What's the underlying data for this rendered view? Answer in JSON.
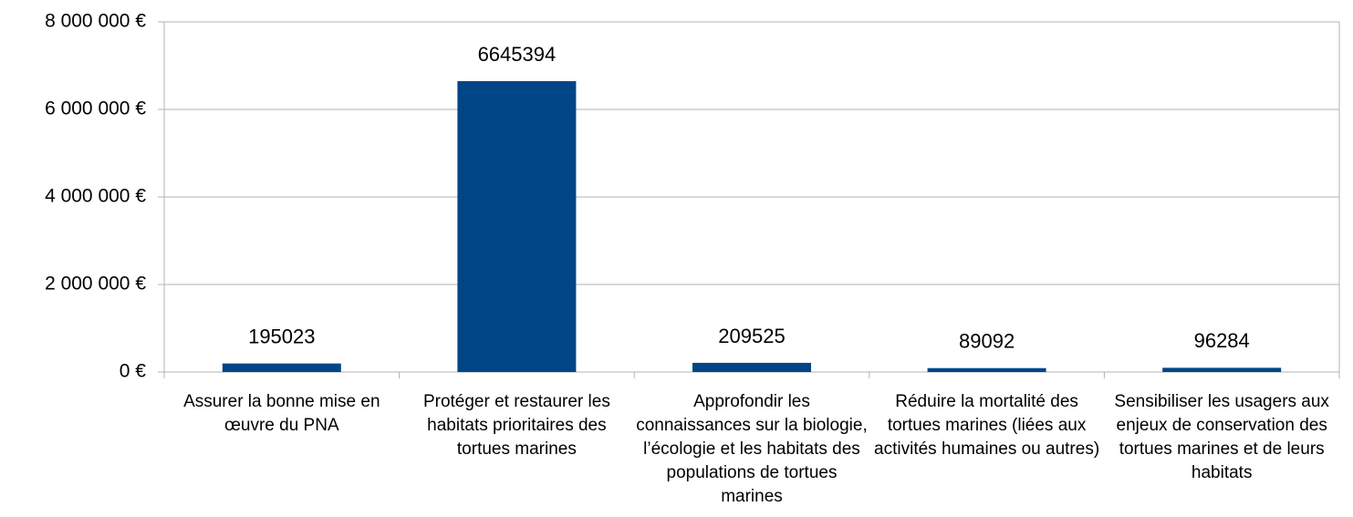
{
  "chart_data": {
    "type": "bar",
    "categories": [
      "Assurer la bonne mise en œuvre du PNA",
      "Protéger et restaurer les habitats prioritaires des tortues marines",
      "Approfondir les connaissances sur la biologie, l’écologie et les habitats des populations de tortues marines",
      "Réduire la mortalité des tortues marines (liées aux activités humaines ou autres)",
      "Sensibiliser les usagers aux enjeux de conservation des tortues marines et de leurs habitats"
    ],
    "values": [
      195023,
      6645394,
      209525,
      89092,
      96284
    ],
    "color": "#004586",
    "ylim": [
      0,
      8000000
    ],
    "yticks": [
      {
        "value": 0,
        "label": "0 €"
      },
      {
        "value": 2000000,
        "label": "2 000 000 €"
      },
      {
        "value": 4000000,
        "label": "4 000 000 €"
      },
      {
        "value": 6000000,
        "label": "6 000 000 €"
      },
      {
        "value": 8000000,
        "label": "8 000 000 €"
      }
    ],
    "grid": true
  }
}
